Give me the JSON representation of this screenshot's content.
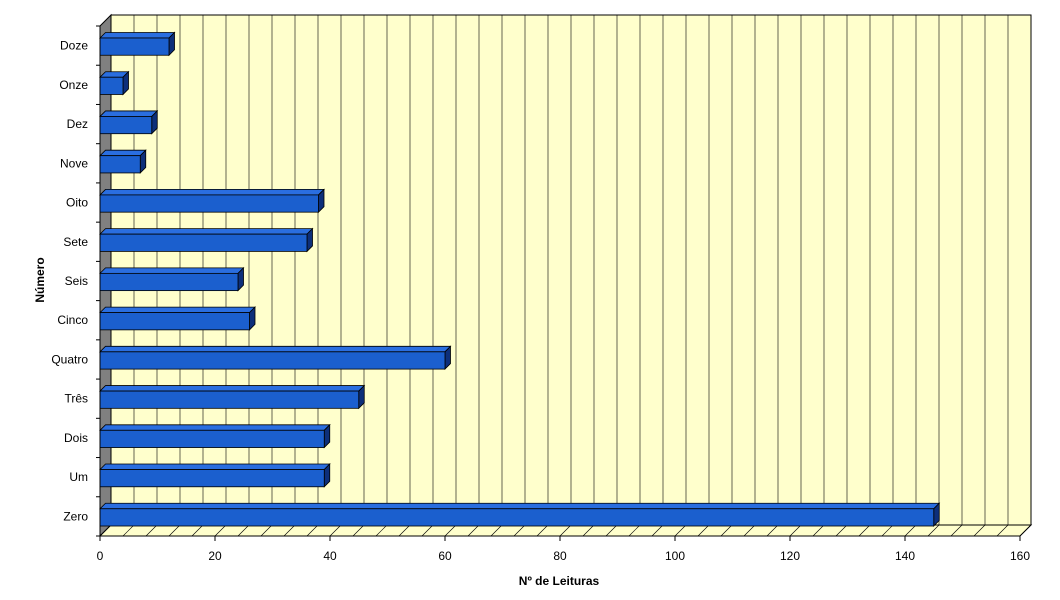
{
  "chart_data": {
    "type": "bar",
    "orientation": "horizontal",
    "style": "3d",
    "categories": [
      "Zero",
      "Um",
      "Dois",
      "Três",
      "Quatro",
      "Cinco",
      "Seis",
      "Sete",
      "Oito",
      "Nove",
      "Dez",
      "Onze",
      "Doze"
    ],
    "values": [
      145,
      39,
      39,
      45,
      60,
      26,
      24,
      36,
      38,
      7,
      9,
      4,
      12
    ],
    "xlabel": "Nº de Leituras",
    "ylabel": "Número",
    "xlim": [
      0,
      160
    ],
    "x_ticks": [
      0,
      20,
      40,
      60,
      80,
      100,
      120,
      140,
      160
    ],
    "grid": true,
    "legend": "none",
    "colors": {
      "bar_front": "#1b5fce",
      "bar_top": "#2a6ee0",
      "bar_side": "#0d2f7a",
      "bar_outline": "#000000",
      "plot_background": "#ffffcc",
      "floor": "#ffffcc",
      "side_wall": "#808080",
      "gridline": "#000000"
    }
  }
}
